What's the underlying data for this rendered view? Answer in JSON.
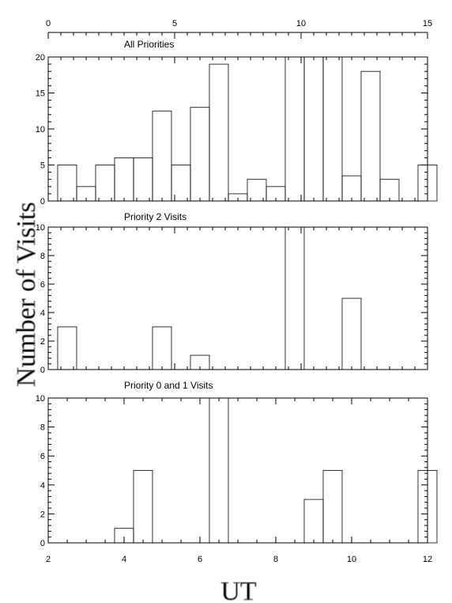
{
  "figure": {
    "ylabel": "Number of Visits",
    "xlabel": "UT"
  },
  "chart_data": [
    {
      "type": "bar",
      "title": "All Priorities",
      "xlim": [
        0,
        15
      ],
      "ylim": [
        0,
        20
      ],
      "x_ticks": [
        0,
        5,
        10,
        15
      ],
      "y_ticks": [
        0,
        5,
        10,
        15,
        20
      ],
      "x_axis_position": "top",
      "bin_width": 0.75,
      "bin_starts": [
        0.375,
        1.125,
        1.875,
        2.625,
        3.375,
        4.125,
        4.875,
        5.625,
        6.375,
        7.125,
        7.875,
        8.625,
        9.375,
        10.125,
        10.875,
        11.625,
        12.375,
        13.125,
        13.875,
        14.625
      ],
      "values": [
        5,
        2,
        5,
        6,
        6,
        12.5,
        5,
        13,
        19,
        1,
        3,
        2,
        20,
        20,
        20,
        3.5,
        18,
        3,
        0,
        5
      ]
    },
    {
      "type": "bar",
      "title": "Priority 2 Visits",
      "ylim": [
        0,
        10
      ],
      "y_ticks": [
        0,
        2,
        4,
        6,
        8,
        10
      ],
      "bin_starts": [
        0.375,
        1.125,
        1.875,
        2.625,
        3.375,
        4.125,
        4.875,
        5.625,
        6.375,
        7.125,
        7.875,
        8.625,
        9.375,
        10.125,
        10.875,
        11.625,
        12.375,
        13.125,
        13.875,
        14.625
      ],
      "values": [
        3,
        0,
        0,
        0,
        0,
        3,
        0,
        1,
        0,
        0,
        0,
        0,
        10,
        0,
        0,
        5,
        0,
        0,
        0,
        0
      ]
    },
    {
      "type": "bar",
      "title": "Priority 0 and 1 Visits",
      "xlim": [
        2,
        12
      ],
      "ylim": [
        0,
        10
      ],
      "x_ticks": [
        2,
        4,
        6,
        8,
        10,
        12
      ],
      "y_ticks": [
        0,
        2,
        4,
        6,
        8,
        10
      ],
      "x_axis_position": "bottom",
      "bin_width": 0.5,
      "bin_starts": [
        3.75,
        4.25,
        6.25,
        8.75,
        9.25,
        11.75
      ],
      "values": [
        1,
        5,
        10,
        3,
        5,
        5
      ]
    }
  ]
}
